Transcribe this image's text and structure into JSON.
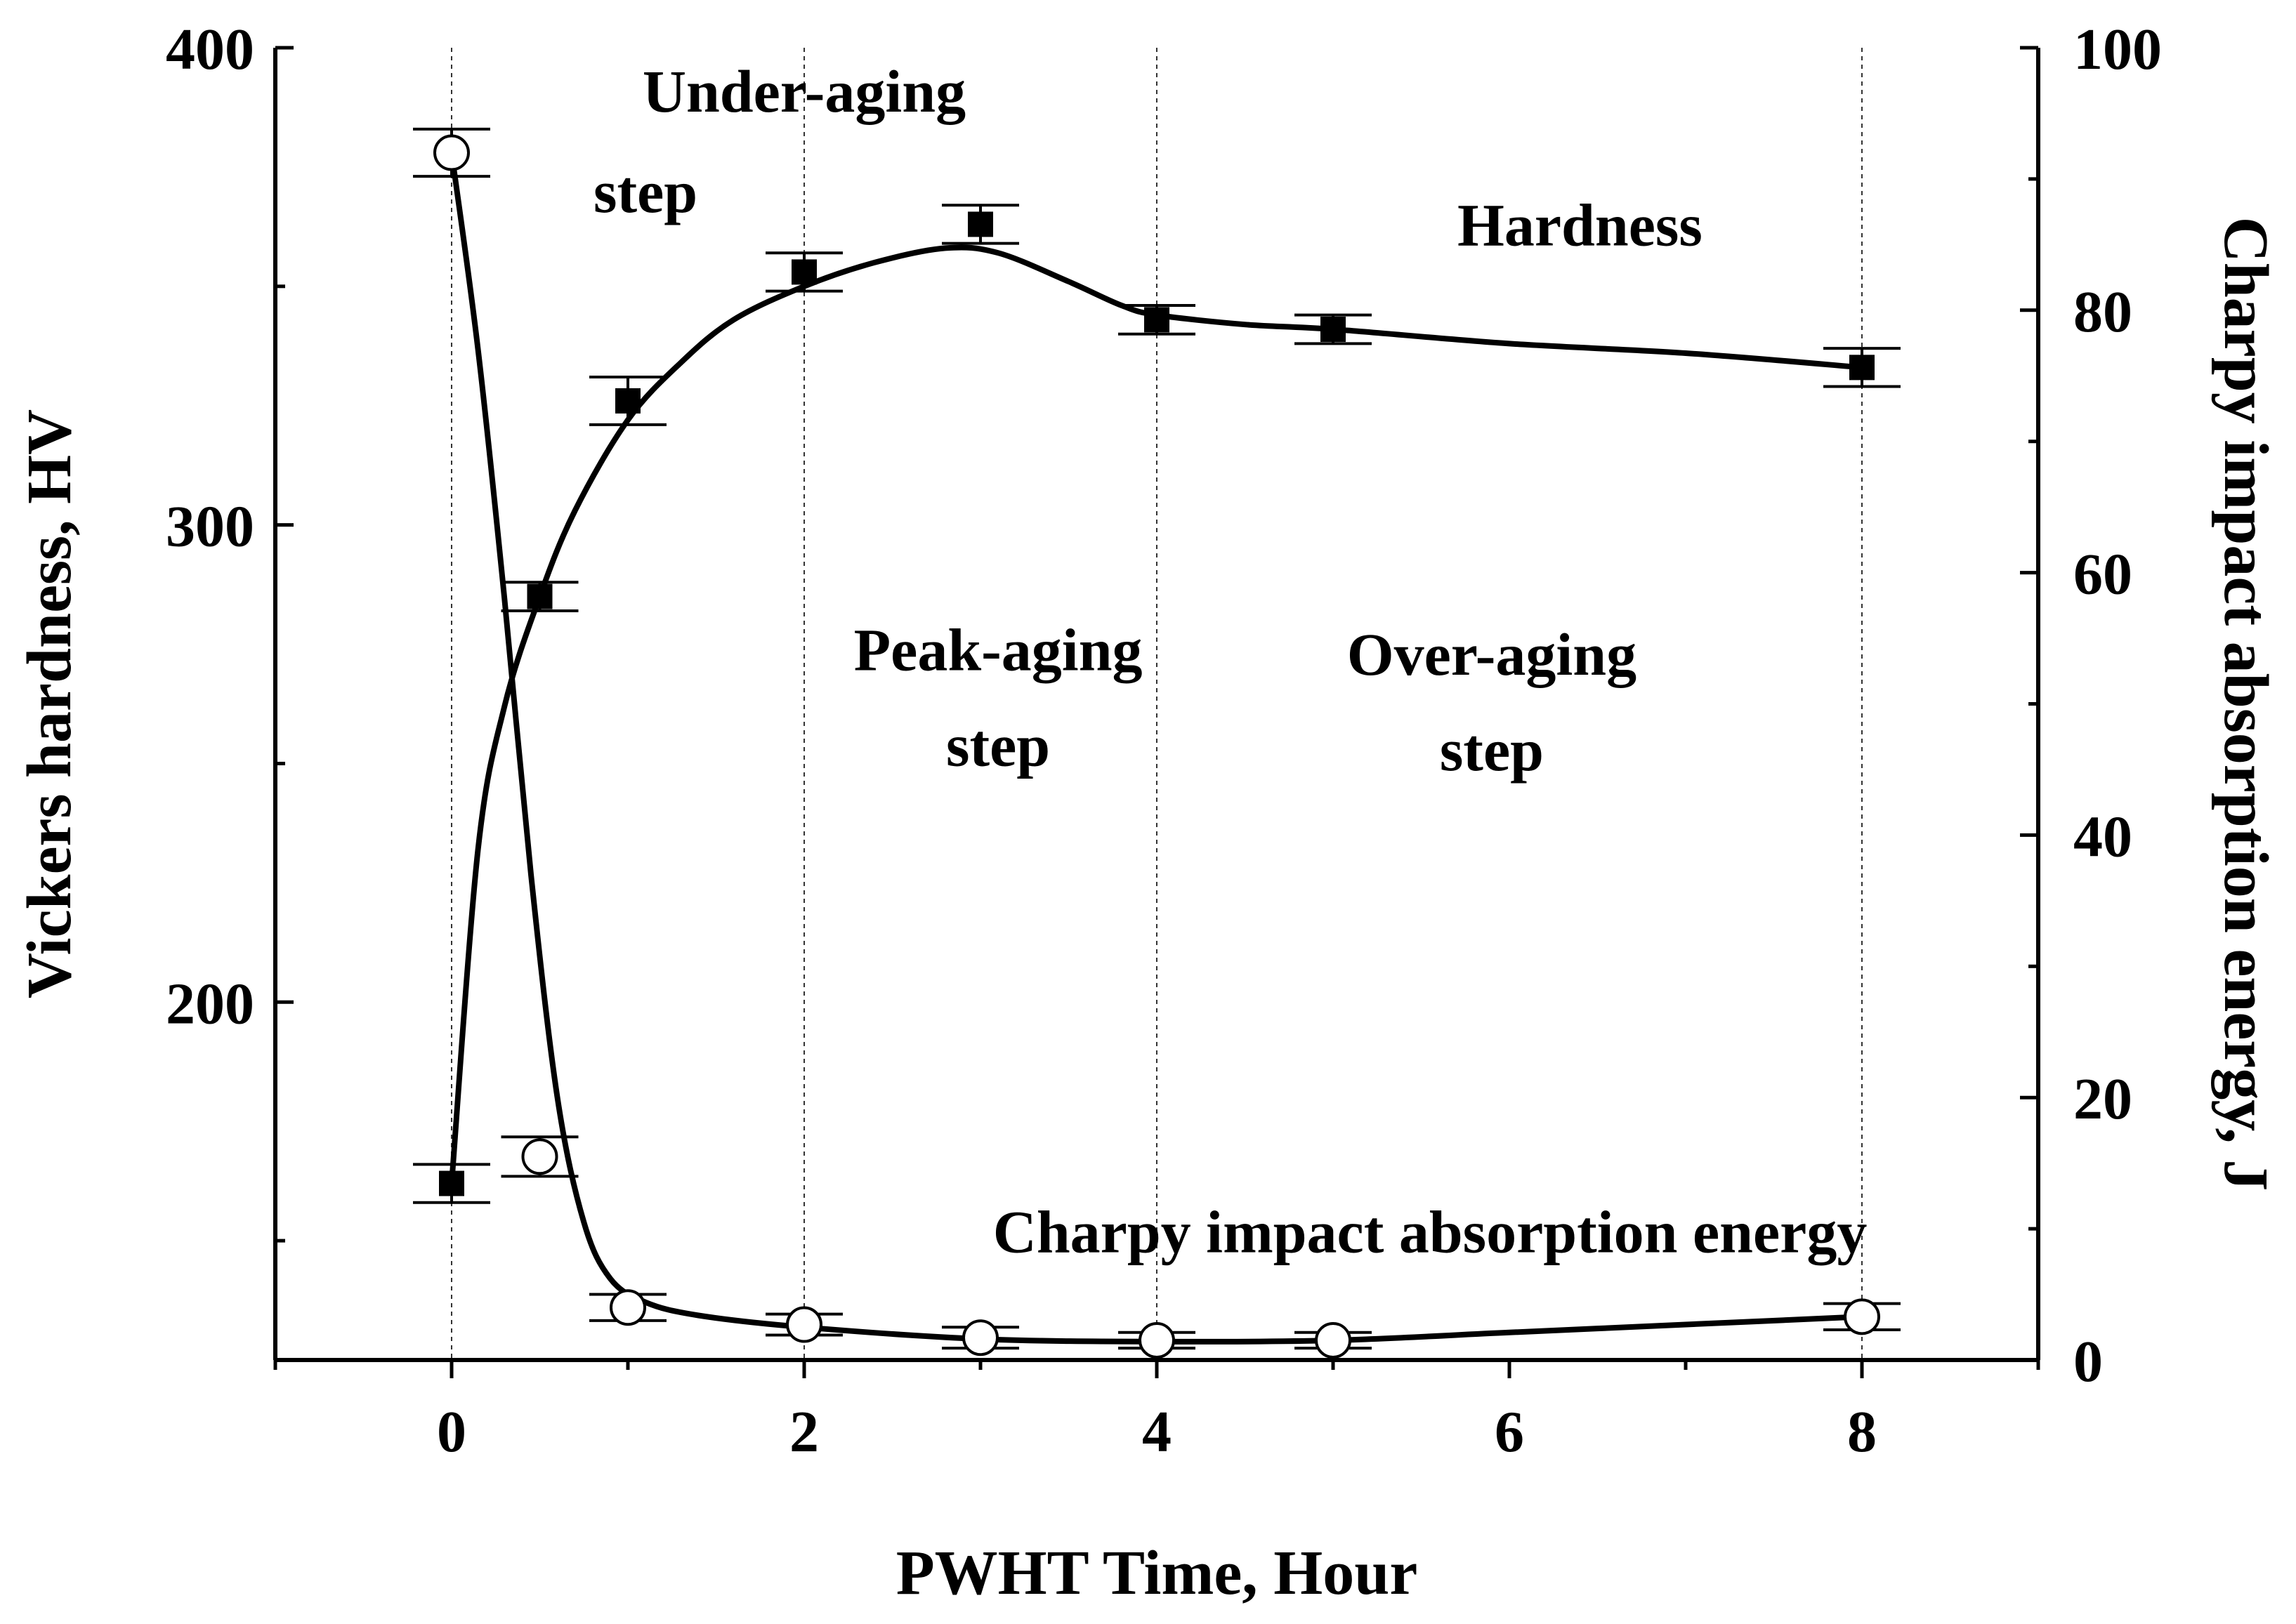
{
  "chart_data": {
    "type": "line",
    "title": "",
    "xlabel": "PWHT Time, Hour",
    "ylabel_left": "Vickers hardness, HV",
    "ylabel_right": "Charpy impact absorption energy, J",
    "xlim": [
      -1,
      9
    ],
    "ylim_left": [
      125,
      400
    ],
    "ylim_right": [
      0,
      100
    ],
    "x_ticks": [
      0,
      2,
      4,
      6,
      8
    ],
    "y_left_ticks": [
      200,
      300,
      400
    ],
    "y_right_ticks": [
      0,
      20,
      40,
      60,
      80,
      100
    ],
    "guide_lines_x": [
      0,
      2,
      4,
      8
    ],
    "series": [
      {
        "name": "Hardness",
        "axis": "left",
        "marker": "filled-square",
        "x": [
          0,
          0.5,
          1,
          2,
          3,
          4,
          5,
          8
        ],
        "values": [
          162,
          285,
          326,
          353,
          363,
          343,
          341,
          333
        ],
        "error": [
          4,
          3,
          5,
          4,
          4,
          3,
          3,
          4
        ],
        "fit_curve": {
          "x": [
            0,
            0.15,
            0.3,
            0.5,
            0.7,
            1.0,
            1.3,
            1.6,
            2.0,
            2.4,
            2.8,
            3.1,
            3.5,
            3.8,
            4.0,
            4.5,
            5.0,
            6.0,
            7.0,
            8.0
          ],
          "y": [
            162,
            232,
            262,
            285,
            303,
            322,
            334,
            343,
            350,
            355,
            358,
            357,
            351,
            346,
            344,
            342,
            341,
            338,
            336,
            333
          ]
        }
      },
      {
        "name": "Charpy impact absorption energy",
        "axis": "right",
        "marker": "open-circle",
        "x": [
          0,
          0.5,
          1,
          2,
          3,
          4,
          5,
          8
        ],
        "values": [
          92,
          15.5,
          4,
          2.7,
          1.7,
          1.5,
          1.5,
          3.3
        ],
        "error": [
          1.8,
          1.5,
          1.0,
          0.8,
          0.8,
          0.6,
          0.6,
          1.0
        ],
        "fit_curve": {
          "x": [
            0,
            0.15,
            0.3,
            0.45,
            0.6,
            0.75,
            0.9,
            1.1,
            1.4,
            2.0,
            3.0,
            4.0,
            5.0,
            6.0,
            7.0,
            8.0
          ],
          "y": [
            92,
            77,
            58,
            37,
            20,
            10.5,
            6.2,
            4.4,
            3.4,
            2.5,
            1.6,
            1.4,
            1.5,
            2.1,
            2.7,
            3.3
          ]
        }
      }
    ],
    "annotations": [
      {
        "text": "Under-aging",
        "x": 2.0,
        "y_left": 391
      },
      {
        "text": "step",
        "x": 1.1,
        "y_left": 370
      },
      {
        "text": "Hardness",
        "x": 6.4,
        "y_left": 363
      },
      {
        "text": "Peak-aging",
        "x": 3.1,
        "y_left": 274
      },
      {
        "text": "step",
        "x": 3.1,
        "y_left": 254
      },
      {
        "text": "Over-aging",
        "x": 5.9,
        "y_left": 273
      },
      {
        "text": "step",
        "x": 5.9,
        "y_left": 253
      },
      {
        "text": "Charpy impact absorption energy",
        "x": 5.55,
        "y_left": 152
      }
    ]
  }
}
